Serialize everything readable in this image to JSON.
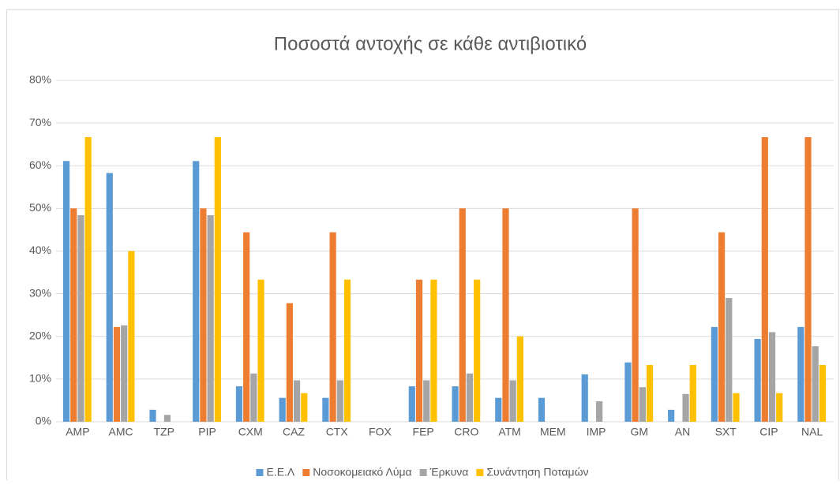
{
  "chart_data": {
    "type": "bar",
    "title": "Ποσοστά αντοχής σε κάθε αντιβιοτικό",
    "categories": [
      "AMP",
      "AMC",
      "TZP",
      "PIP",
      "CXM",
      "CAZ",
      "CTX",
      "FOX",
      "FEP",
      "CRO",
      "ATM",
      "MEM",
      "IMP",
      "GM",
      "AN",
      "SXT",
      "CIP",
      "NAL"
    ],
    "series": [
      {
        "name": "Ε.Ε.Λ",
        "color": "#5b9bd5",
        "values": [
          61.1,
          58.3,
          2.8,
          61.1,
          8.3,
          5.6,
          5.6,
          0,
          8.3,
          8.3,
          5.6,
          5.6,
          11.1,
          13.9,
          2.8,
          22.2,
          19.4,
          22.2
        ]
      },
      {
        "name": "Νοσοκομειακό Λύμα",
        "color": "#ed7d31",
        "values": [
          50,
          22.2,
          0,
          50,
          44.4,
          27.8,
          44.4,
          0,
          33.3,
          50,
          50,
          0,
          0,
          50,
          0,
          44.4,
          66.7,
          66.7
        ]
      },
      {
        "name": "Έρκυνα",
        "color": "#a5a5a5",
        "values": [
          48.4,
          22.6,
          1.6,
          48.4,
          11.3,
          9.7,
          9.7,
          0,
          9.7,
          11.3,
          9.7,
          0,
          4.8,
          8.1,
          6.5,
          29.0,
          21.0,
          17.7
        ]
      },
      {
        "name": "Συνάντηση Ποταμών",
        "color": "#ffc000",
        "values": [
          66.7,
          40,
          0,
          66.7,
          33.3,
          6.7,
          33.3,
          0,
          33.3,
          33.3,
          20,
          0,
          0,
          13.3,
          13.3,
          6.7,
          6.7,
          13.3
        ]
      }
    ],
    "ylim": [
      0,
      80
    ],
    "yticks": [
      {
        "value": 0,
        "label": "0%"
      },
      {
        "value": 10,
        "label": "10%"
      },
      {
        "value": 20,
        "label": "20%"
      },
      {
        "value": 30,
        "label": "30%"
      },
      {
        "value": 40,
        "label": "40%"
      },
      {
        "value": 50,
        "label": "50%"
      },
      {
        "value": 60,
        "label": "60%"
      },
      {
        "value": 70,
        "label": "70%"
      },
      {
        "value": 80,
        "label": "80%"
      }
    ],
    "grid": true,
    "legend": "bottom"
  }
}
